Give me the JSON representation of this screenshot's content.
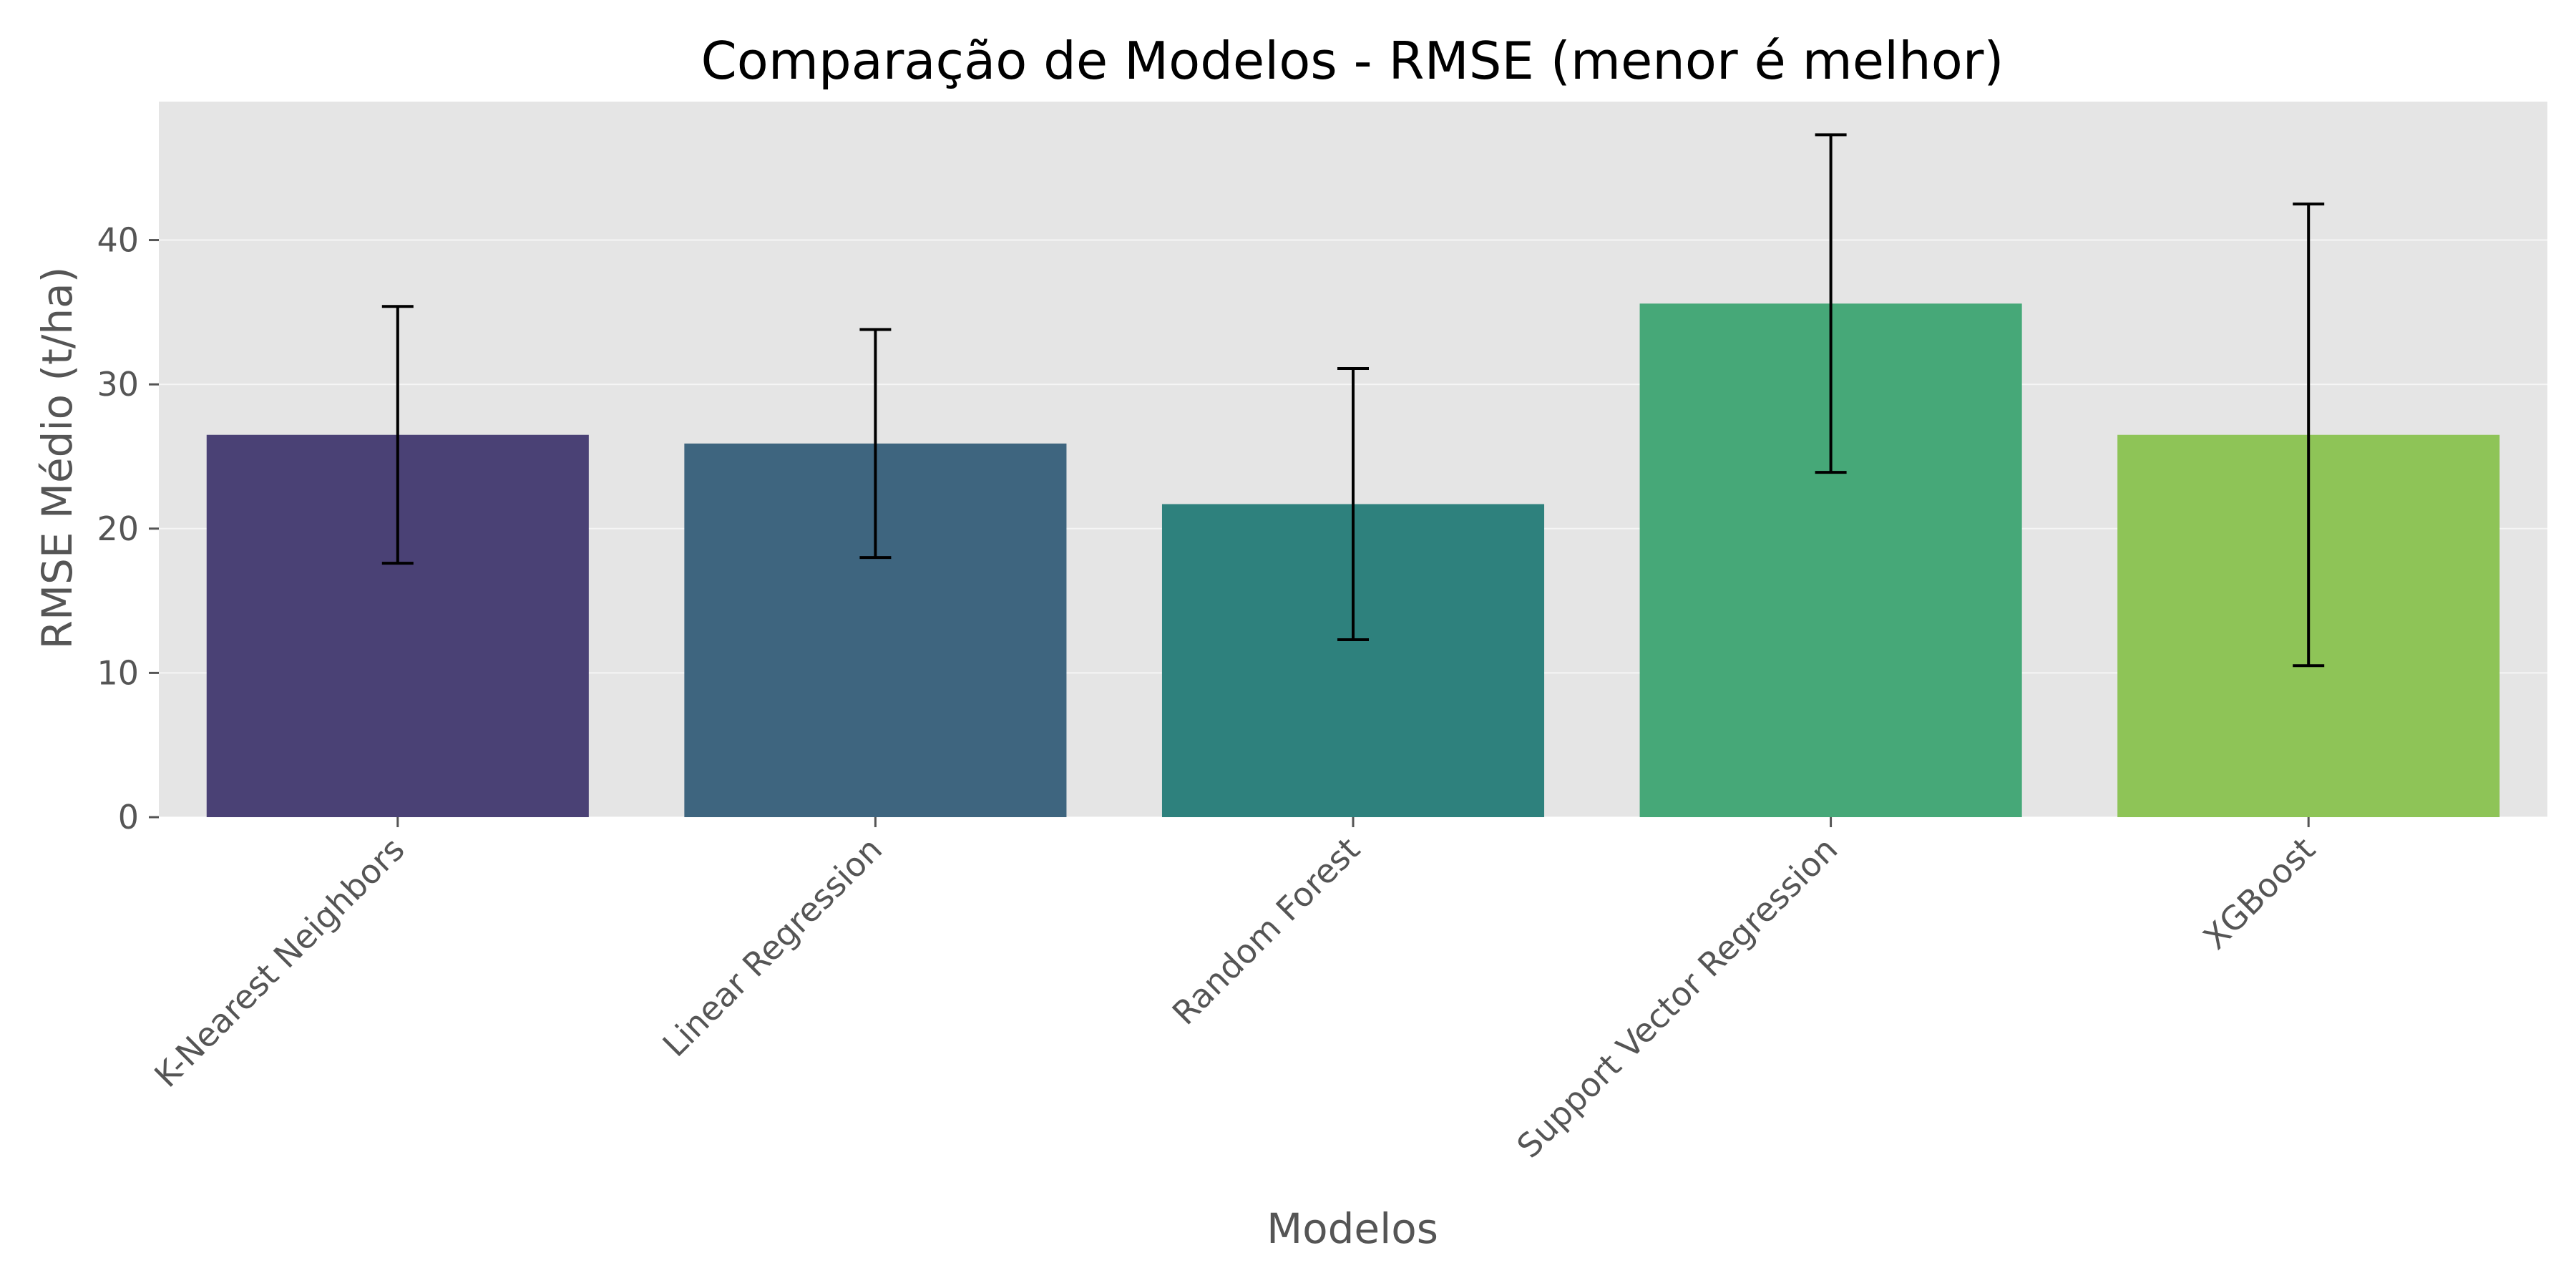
{
  "chart_data": {
    "type": "bar",
    "title": "Comparação de Modelos - RMSE (menor é melhor)",
    "xlabel": "Modelos",
    "ylabel": "RMSE Médio (t/ha)",
    "categories": [
      "K-Nearest Neighbors",
      "Linear Regression",
      "Random Forest",
      "Support Vector Regression",
      "XGBoost"
    ],
    "values": [
      26.5,
      25.9,
      21.7,
      35.6,
      26.5
    ],
    "error": [
      8.9,
      7.9,
      9.4,
      11.7,
      16.0
    ],
    "colors": [
      "#4a4175",
      "#3e657f",
      "#2e817d",
      "#46a878",
      "#8ec457"
    ],
    "ylim": [
      0,
      49.6
    ],
    "yticks": [
      0,
      10,
      20,
      30,
      40
    ],
    "grid": true,
    "background": "#e5e5e5"
  }
}
